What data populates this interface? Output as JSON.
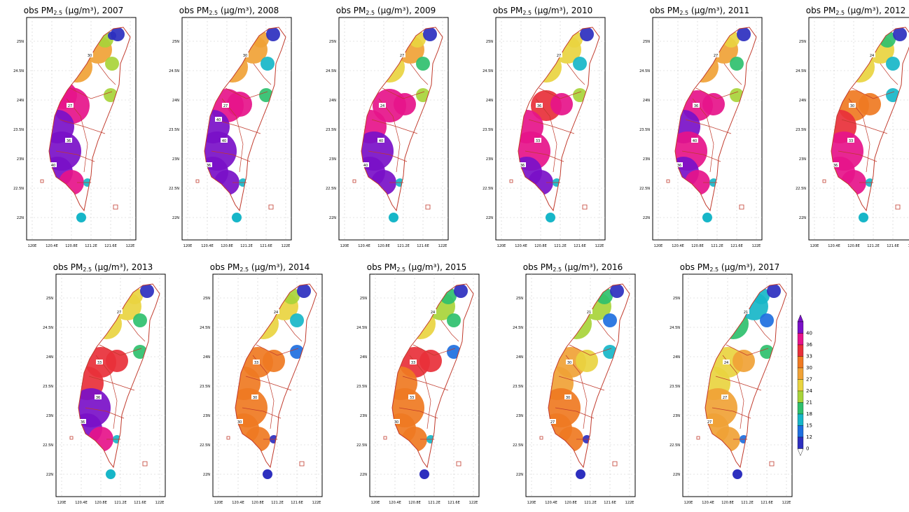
{
  "panels": [
    {
      "title_prefix": "obs PM",
      "title_sub": "2.5",
      "title_suffix": " (μg/m³), 2007",
      "year": 2007,
      "labels": [
        "30",
        "27",
        "36",
        "40"
      ]
    },
    {
      "title_prefix": "obs PM",
      "title_sub": "2.5",
      "title_suffix": " (μg/m³), 2008",
      "year": 2008,
      "labels": [
        "30",
        "27",
        "40",
        "36",
        "40"
      ]
    },
    {
      "title_prefix": "obs PM",
      "title_sub": "2.5",
      "title_suffix": " (μg/m³), 2009",
      "year": 2009,
      "labels": [
        "27",
        "24",
        "40",
        "40"
      ]
    },
    {
      "title_prefix": "obs PM",
      "title_sub": "2.5",
      "title_suffix": " (μg/m³), 2010",
      "year": 2010,
      "labels": [
        "27",
        "36",
        "33",
        "36"
      ]
    },
    {
      "title_prefix": "obs PM",
      "title_sub": "2.5",
      "title_suffix": " (μg/m³), 2011",
      "year": 2011,
      "labels": [
        "27",
        "36",
        "40",
        "36"
      ]
    },
    {
      "title_prefix": "obs PM",
      "title_sub": "2.5",
      "title_suffix": " (μg/m³), 2012",
      "year": 2012,
      "labels": [
        "24",
        "30",
        "33",
        "36"
      ]
    },
    {
      "title_prefix": "obs PM",
      "title_sub": "2.5",
      "title_suffix": " (μg/m³), 2013",
      "year": 2013,
      "labels": [
        "27",
        "33",
        "36",
        "36"
      ]
    },
    {
      "title_prefix": "obs PM",
      "title_sub": "2.5",
      "title_suffix": " (μg/m³), 2014",
      "year": 2014,
      "labels": [
        "24",
        "33",
        "30",
        "30"
      ]
    },
    {
      "title_prefix": "obs PM",
      "title_sub": "2.5",
      "title_suffix": " (μg/m³), 2015",
      "year": 2015,
      "labels": [
        "24",
        "33",
        "33",
        "30"
      ]
    },
    {
      "title_prefix": "obs PM",
      "title_sub": "2.5",
      "title_suffix": " (μg/m³), 2016",
      "year": 2016,
      "labels": [
        "21",
        "30",
        "30",
        "27"
      ]
    },
    {
      "title_prefix": "obs PM",
      "title_sub": "2.5",
      "title_suffix": " (μg/m³), 2017",
      "year": 2017,
      "labels": [
        "21",
        "24",
        "27",
        "27"
      ]
    }
  ],
  "x_ticks": [
    "120E",
    "120.4E",
    "120.8E",
    "121.2E",
    "121.6E",
    "122E"
  ],
  "y_ticks": [
    "25N",
    "24.5N",
    "24N",
    "23.5N",
    "23N",
    "22.5N",
    "22N"
  ],
  "colorbar": {
    "levels": [
      "40",
      "36",
      "33",
      "30",
      "27",
      "24",
      "21",
      "18",
      "15",
      "12",
      "0"
    ],
    "colors": [
      "#7a10c8",
      "#e6148a",
      "#e8303a",
      "#ef7a22",
      "#f0a236",
      "#e9d440",
      "#a8d43a",
      "#2fc06e",
      "#17b6c8",
      "#1e6fe0",
      "#2d2fbf",
      "#ffffff"
    ]
  }
}
